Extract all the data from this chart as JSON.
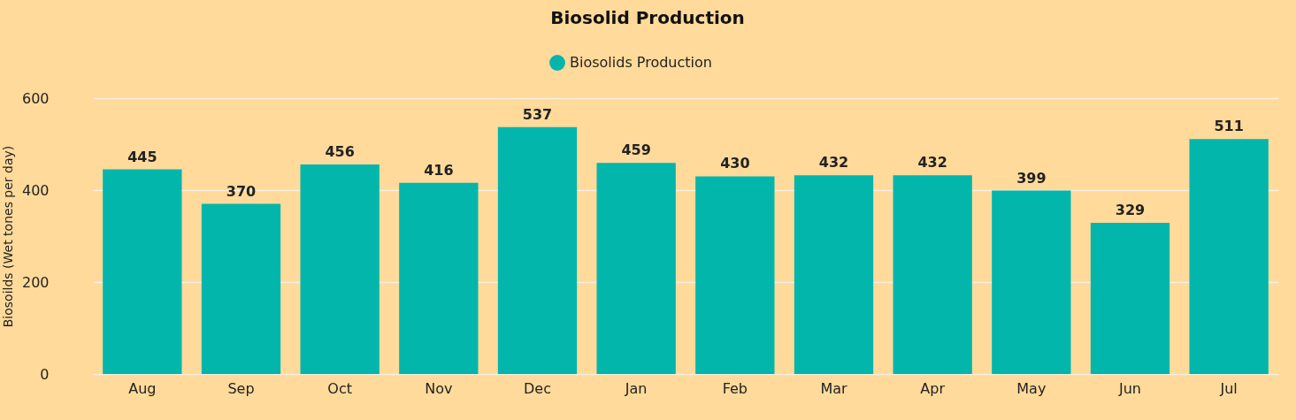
{
  "chart_data": {
    "type": "bar",
    "title": "Biosolid Production",
    "ylabel": "Biosoilds (Wet tones per day)",
    "categories": [
      "Aug",
      "Sep",
      "Oct",
      "Nov",
      "Dec",
      "Jan",
      "Feb",
      "Mar",
      "Apr",
      "May",
      "Jun",
      "Jul"
    ],
    "series": [
      {
        "name": "Biosolids Production",
        "color": "#03b6ac",
        "values": [
          445,
          370,
          456,
          416,
          537,
          459,
          430,
          432,
          432,
          399,
          329,
          511
        ]
      }
    ],
    "ylim": [
      0,
      600
    ],
    "yticks": [
      0,
      200,
      400,
      600
    ],
    "grid": "y",
    "legend": "top",
    "data_labels": true
  }
}
